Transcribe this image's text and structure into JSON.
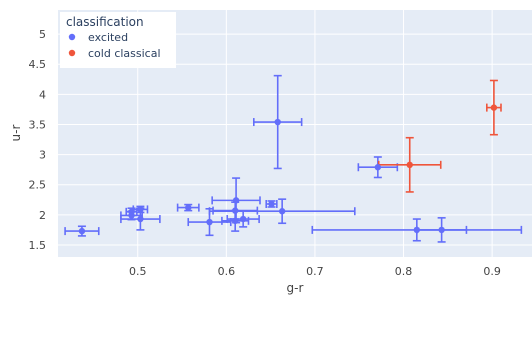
{
  "chart_data": {
    "type": "scatter",
    "xlabel": "g-r",
    "ylabel": "u-r",
    "xlim": [
      0.41,
      0.945
    ],
    "ylim": [
      1.3,
      5.4
    ],
    "x_ticks": [
      0.5,
      0.6,
      0.7,
      0.8,
      0.9
    ],
    "y_ticks": [
      1.5,
      2,
      2.5,
      3,
      3.5,
      4,
      4.5,
      5
    ],
    "grid": true,
    "background": "#e5ecf6",
    "legend": {
      "title": "classification",
      "placement": "top-left"
    },
    "series": [
      {
        "name": "excited",
        "color": "#636efa",
        "points": [
          {
            "x": 0.437,
            "y": 1.73,
            "xerr": 0.019,
            "yerr": 0.08
          },
          {
            "x": 0.493,
            "y": 2.05,
            "xerr": 0.006,
            "yerr": 0.06
          },
          {
            "x": 0.493,
            "y": 1.99,
            "xerr": 0.012,
            "yerr": 0.07
          },
          {
            "x": 0.503,
            "y": 2.09,
            "xerr": 0.008,
            "yerr": 0.05
          },
          {
            "x": 0.503,
            "y": 1.93,
            "xerr": 0.022,
            "yerr": 0.18
          },
          {
            "x": 0.557,
            "y": 2.12,
            "xerr": 0.012,
            "yerr": 0.05
          },
          {
            "x": 0.581,
            "y": 1.88,
            "xerr": 0.024,
            "yerr": 0.22
          },
          {
            "x": 0.61,
            "y": 2.07,
            "xerr": 0.025,
            "yerr": 0.14
          },
          {
            "x": 0.61,
            "y": 1.9,
            "xerr": 0.015,
            "yerr": 0.17
          },
          {
            "x": 0.611,
            "y": 2.24,
            "xerr": 0.027,
            "yerr": 0.37
          },
          {
            "x": 0.619,
            "y": 1.93,
            "xerr": 0.018,
            "yerr": 0.13
          },
          {
            "x": 0.651,
            "y": 2.18,
            "xerr": 0.006,
            "yerr": 0.05
          },
          {
            "x": 0.658,
            "y": 3.54,
            "xerr": 0.027,
            "yerr": 0.77
          },
          {
            "x": 0.663,
            "y": 2.06,
            "xerr": 0.082,
            "yerr": 0.2
          },
          {
            "x": 0.771,
            "y": 2.79,
            "xerr": 0.022,
            "yerr": 0.17
          },
          {
            "x": 0.815,
            "y": 1.75,
            "xerr": 0.118,
            "yerr": 0.18
          },
          {
            "x": 0.843,
            "y": 1.75,
            "xerr": 0.028,
            "yerr": 0.2
          }
        ]
      },
      {
        "name": "cold classical",
        "color": "#ef553b",
        "points": [
          {
            "x": 0.807,
            "y": 2.83,
            "xerr": 0.035,
            "yerr": 0.45
          },
          {
            "x": 0.902,
            "y": 3.78,
            "xerr": 0.008,
            "yerr": 0.45
          }
        ]
      }
    ]
  }
}
